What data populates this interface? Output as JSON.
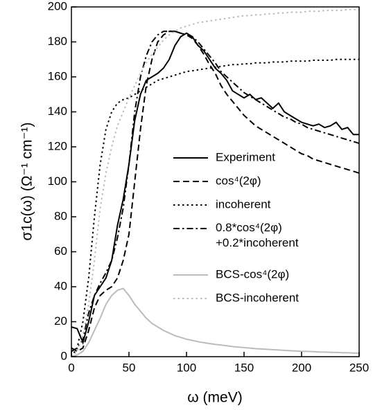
{
  "chart_data": {
    "type": "line",
    "xlabel": "ω (meV)",
    "ylabel": "σ1c(ω) (Ω⁻¹ cm⁻¹)",
    "xlim": [
      0,
      250
    ],
    "xticks": [
      0,
      50,
      100,
      150,
      200,
      250
    ],
    "ylim": [
      0,
      200
    ],
    "yticks": [
      0,
      20,
      40,
      60,
      80,
      100,
      120,
      140,
      160,
      180,
      200
    ],
    "x": [
      0,
      5,
      10,
      15,
      20,
      25,
      30,
      35,
      40,
      45,
      50,
      55,
      60,
      65,
      70,
      75,
      80,
      85,
      90,
      95,
      100,
      105,
      110,
      115,
      120,
      125,
      130,
      135,
      140,
      145,
      150,
      155,
      160,
      165,
      170,
      175,
      180,
      185,
      190,
      195,
      200,
      205,
      210,
      215,
      220,
      225,
      230,
      235,
      240,
      245,
      250
    ],
    "series": [
      {
        "name": "Experiment",
        "color": "#000000",
        "style": "solid",
        "width": 2,
        "values": [
          17,
          16,
          8,
          20,
          35,
          40,
          45,
          55,
          75,
          90,
          110,
          135,
          150,
          158,
          160,
          162,
          165,
          170,
          178,
          183,
          185,
          183,
          178,
          175,
          170,
          165,
          162,
          158,
          152,
          150,
          148,
          150,
          147,
          148,
          145,
          142,
          145,
          140,
          138,
          136,
          134,
          133,
          132,
          133,
          131,
          132,
          134,
          130,
          131,
          127,
          127
        ]
      },
      {
        "name": "cos⁴(2φ)",
        "color": "#000000",
        "style": "dashed",
        "width": 2,
        "values": [
          5,
          3,
          5,
          15,
          28,
          35,
          38,
          40,
          45,
          55,
          70,
          100,
          130,
          155,
          170,
          180,
          184,
          186,
          186,
          185,
          184,
          182,
          178,
          173,
          167,
          162,
          155,
          150,
          146,
          142,
          138,
          135,
          132,
          130,
          128,
          126,
          124,
          122,
          120,
          118,
          116,
          115,
          113,
          112,
          111,
          110,
          109,
          108,
          107,
          106,
          105
        ]
      },
      {
        "name": "incoherent",
        "color": "#000000",
        "style": "dotted",
        "width": 2,
        "values": [
          0,
          5,
          20,
          45,
          80,
          110,
          130,
          140,
          145,
          147,
          148,
          150,
          152,
          154,
          156,
          158,
          159,
          160,
          161,
          162,
          163,
          163.5,
          164,
          164.5,
          165,
          165.5,
          166,
          166.5,
          167,
          167,
          167.5,
          167.5,
          168,
          168,
          168,
          168.5,
          168.5,
          168.5,
          169,
          169,
          169,
          169,
          169.5,
          169.5,
          169.5,
          169.5,
          170,
          170,
          170,
          170,
          170
        ]
      },
      {
        "name": "0.8*cos⁴(2φ)\n+0.2*incoherent",
        "color": "#000000",
        "style": "dashdot",
        "width": 2,
        "values": [
          3,
          5,
          10,
          25,
          35,
          42,
          48,
          55,
          68,
          85,
          110,
          140,
          160,
          172,
          180,
          184,
          186,
          186,
          186,
          185,
          184,
          183,
          180,
          176,
          172,
          168,
          163,
          160,
          157,
          154,
          151,
          149,
          147,
          145,
          143,
          141,
          139,
          137,
          136,
          134,
          133,
          131,
          130,
          129,
          128,
          127,
          126,
          125,
          124,
          123,
          122
        ]
      },
      {
        "name": "BCS-cos⁴(2φ)",
        "color": "#bbbbbb",
        "style": "solid",
        "width": 2,
        "values": [
          0,
          1,
          3,
          8,
          15,
          22,
          30,
          35,
          38,
          39,
          35,
          30,
          26,
          22,
          19,
          17,
          15,
          13.5,
          12,
          11,
          10,
          9.3,
          8.6,
          8,
          7.5,
          7,
          6.6,
          6.2,
          5.8,
          5.5,
          5.2,
          4.9,
          4.6,
          4.4,
          4.2,
          4,
          3.8,
          3.6,
          3.4,
          3.3,
          3.1,
          3,
          2.9,
          2.7,
          2.6,
          2.5,
          2.4,
          2.3,
          2.2,
          2.1,
          2
        ]
      },
      {
        "name": "BCS-incoherent",
        "color": "#bbbbbb",
        "style": "dotted",
        "width": 2,
        "values": [
          0,
          3,
          12,
          30,
          55,
          85,
          105,
          120,
          132,
          140,
          148,
          155,
          162,
          168,
          173,
          177,
          181,
          184,
          186,
          188,
          189,
          190,
          191,
          191.5,
          192,
          192.5,
          193,
          193.5,
          194,
          194.5,
          195,
          195,
          195.5,
          195.5,
          196,
          196,
          196.5,
          196.5,
          197,
          197,
          197,
          197.5,
          197.5,
          197.5,
          198,
          198,
          198,
          198,
          198.5,
          198.5,
          198.5
        ]
      }
    ]
  }
}
